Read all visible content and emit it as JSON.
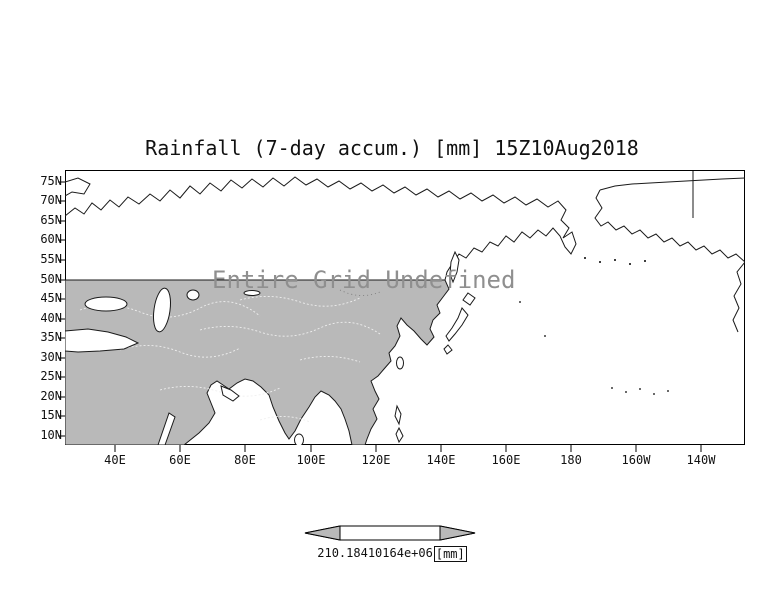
{
  "title": "Rainfall (7-day accum.) [mm] 15Z10Aug2018",
  "map": {
    "overlay_text": "Entire Grid Undefined",
    "lat_labels": [
      "75N",
      "70N",
      "65N",
      "60N",
      "55N",
      "50N",
      "45N",
      "40N",
      "35N",
      "30N",
      "25N",
      "20N",
      "15N",
      "10N"
    ],
    "lon_labels": [
      "40E",
      "60E",
      "80E",
      "100E",
      "120E",
      "140E",
      "160E",
      "180",
      "160W",
      "140W"
    ],
    "land_color": "#b9b9b9",
    "sea_color": "#ffffff",
    "coast_color": "#1a1a1a"
  },
  "colorbar": {
    "values_label": "210.18410164e+06",
    "units_label": "[mm]"
  }
}
